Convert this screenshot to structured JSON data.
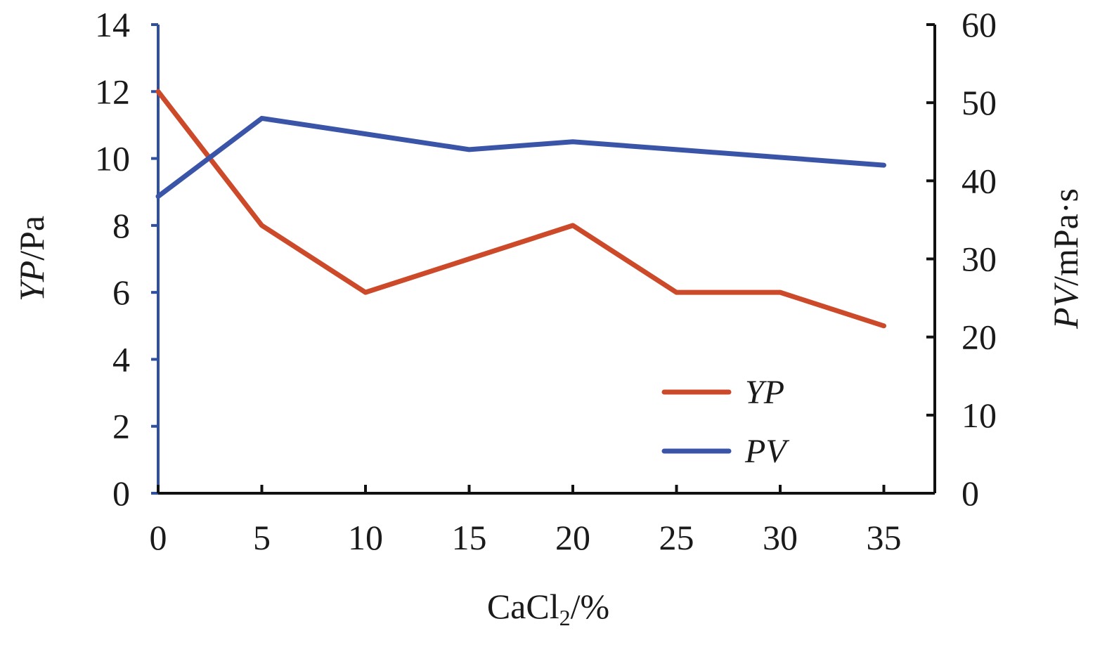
{
  "chart_data": {
    "type": "line",
    "x": [
      0,
      5,
      10,
      15,
      20,
      25,
      30,
      35
    ],
    "x_ticks": [
      "0",
      "5",
      "10",
      "15",
      "20",
      "25",
      "30",
      "35"
    ],
    "xlim": [
      0,
      37.5
    ],
    "xlabel": {
      "main": "CaCl",
      "sub": "2",
      "unit": "/%"
    },
    "y_left": {
      "label_italic": "YP",
      "label_unit": "/Pa",
      "lim": [
        0,
        14
      ],
      "ticks": [
        "0",
        "2",
        "4",
        "6",
        "8",
        "10",
        "12",
        "14"
      ],
      "color": "#2f4f9f"
    },
    "y_right": {
      "label_italic": "PV",
      "label_unit": "/mPa·s",
      "lim": [
        0,
        60
      ],
      "ticks": [
        "0",
        "10",
        "20",
        "30",
        "40",
        "50",
        "60"
      ],
      "color": "#111111"
    },
    "series": [
      {
        "name": "YP",
        "axis": "left",
        "color": "#cc4a2a",
        "values": [
          12,
          8,
          6,
          7,
          8,
          6,
          6,
          5
        ]
      },
      {
        "name": "PV",
        "axis": "right",
        "color": "#3a55a8",
        "values": [
          38,
          48,
          46,
          44,
          45,
          44,
          43,
          42
        ]
      }
    ],
    "legend_position": "bottom-right",
    "grid": false
  }
}
